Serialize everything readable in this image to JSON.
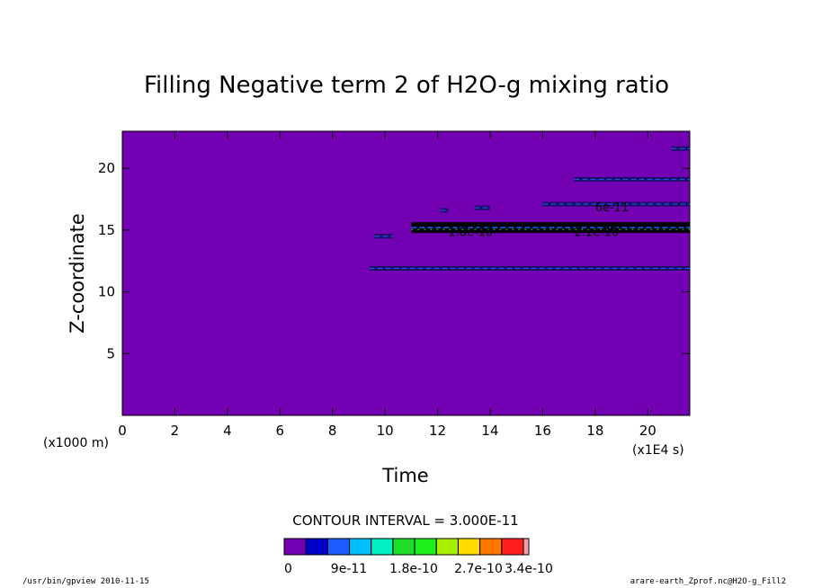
{
  "chart_data": {
    "type": "heatmap",
    "title": "Filling Negative term 2 of H2O-g mixing ratio",
    "xlabel": "Time",
    "x_unit_label": "(x1E4 s)",
    "ylabel": "Z-coordinate",
    "y_unit_label": "(x1000 m)",
    "xlim": [
      0,
      21.6
    ],
    "ylim": [
      0,
      23
    ],
    "x_ticks": [
      "0",
      "2",
      "4",
      "6",
      "8",
      "10",
      "12",
      "14",
      "16",
      "18",
      "20"
    ],
    "y_ticks": [
      "5",
      "10",
      "15",
      "20"
    ],
    "x_tick_values": [
      0,
      2,
      4,
      6,
      8,
      10,
      12,
      14,
      16,
      18,
      20
    ],
    "y_tick_values": [
      5,
      10,
      15,
      20
    ],
    "background_color": "#7300b3",
    "contour_interval_text": "CONTOUR INTERVAL = 3.000E-11",
    "colorbar": {
      "colors": [
        "#7300b3",
        "#0000cc",
        "#1a5cff",
        "#00bfff",
        "#00f0c0",
        "#1edc28",
        "#1ef01e",
        "#a8f000",
        "#ffdc00",
        "#ff7800",
        "#ff1e1e",
        "#f0a0a0"
      ],
      "labels": [
        "0",
        "9e-11",
        "1.8e-10",
        "2.7e-10",
        "3.4e-10"
      ],
      "label_values": [
        0,
        9e-11,
        1.8e-10,
        2.7e-10,
        3.4e-10
      ]
    },
    "bands": [
      {
        "x0": 9.4,
        "x1": 21.6,
        "y": 11.9,
        "weight": "thin"
      },
      {
        "x0": 11.0,
        "x1": 21.6,
        "y": 15.2,
        "weight": "thick"
      },
      {
        "x0": 9.6,
        "x1": 10.3,
        "y": 14.5,
        "weight": "thin"
      },
      {
        "x0": 12.1,
        "x1": 12.4,
        "y": 16.6,
        "weight": "thin"
      },
      {
        "x0": 13.4,
        "x1": 14.0,
        "y": 16.8,
        "weight": "thin"
      },
      {
        "x0": 16.0,
        "x1": 21.6,
        "y": 17.1,
        "weight": "thin"
      },
      {
        "x0": 17.2,
        "x1": 21.6,
        "y": 19.1,
        "weight": "thin"
      },
      {
        "x0": 20.9,
        "x1": 21.6,
        "y": 21.6,
        "weight": "thin"
      }
    ],
    "contour_labels": [
      {
        "text": "1.8e-10",
        "x": 12.4,
        "y": 14.9
      },
      {
        "text": "2.1e-10",
        "x": 17.2,
        "y": 14.9
      },
      {
        "text": "6e-11",
        "x": 18.0,
        "y": 16.9
      }
    ]
  },
  "footer": {
    "left": "/usr/bin/gpview   2010-11-15",
    "right": "arare-earth_Zprof.nc@H2O-g_Fill2"
  }
}
